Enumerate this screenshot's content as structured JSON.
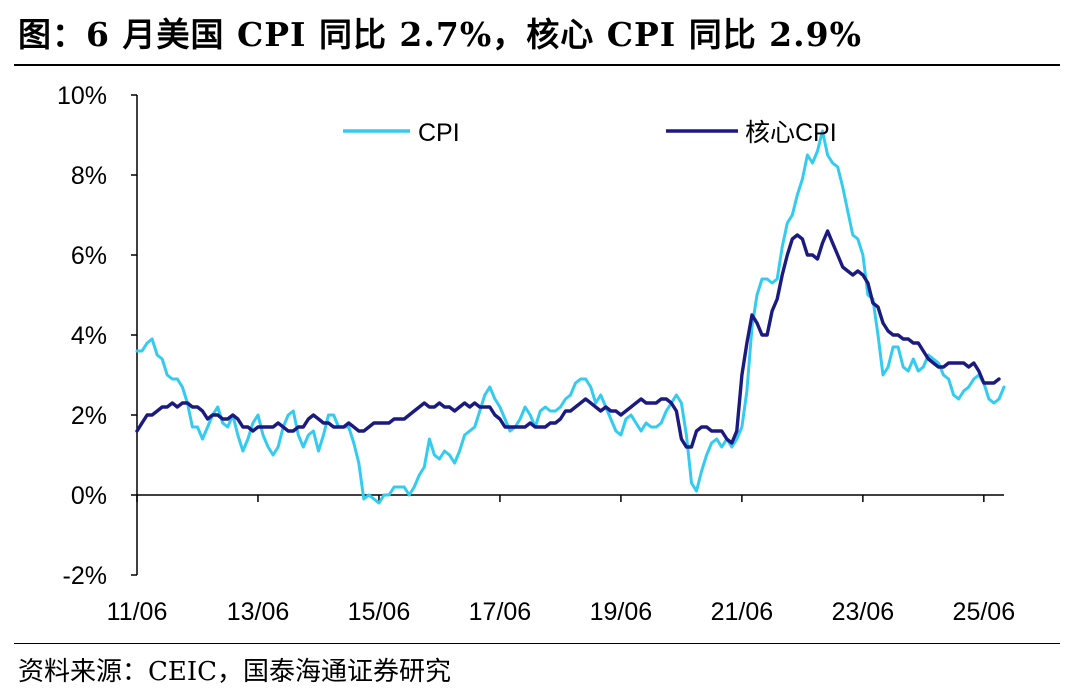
{
  "header": {
    "title": "图：6 月美国 CPI 同比 2.7%，核心 CPI 同比 2.9%"
  },
  "footer": {
    "source": "资料来源：CEIC，国泰海通证券研究"
  },
  "chart_data": {
    "type": "line",
    "title": "图：6 月美国 CPI 同比 2.7%，核心 CPI 同比 2.9%",
    "xlabel": "",
    "ylabel": "",
    "ylim": [
      -2,
      10
    ],
    "y_ticks": [
      -2,
      0,
      2,
      4,
      6,
      8,
      10
    ],
    "y_tick_labels": [
      "-2%",
      "0%",
      "2%",
      "4%",
      "6%",
      "8%",
      "10%"
    ],
    "x_start": "2011-06",
    "x_end": "2025-06",
    "x_tick_labels": [
      "11/06",
      "13/06",
      "15/06",
      "17/06",
      "19/06",
      "21/06",
      "23/06",
      "25/06"
    ],
    "grid": false,
    "legend_position": "top",
    "colors": {
      "cpi": "#33ccf0",
      "core": "#1a1a80"
    },
    "series": [
      {
        "name": "CPI",
        "color": "#33ccf0",
        "values": [
          3.6,
          3.6,
          3.8,
          3.9,
          3.5,
          3.4,
          3.0,
          2.9,
          2.9,
          2.7,
          2.3,
          1.7,
          1.7,
          1.4,
          1.7,
          2.0,
          2.2,
          1.8,
          1.7,
          2.0,
          1.5,
          1.1,
          1.4,
          1.8,
          2.0,
          1.5,
          1.2,
          1.0,
          1.2,
          1.7,
          2.0,
          2.1,
          1.5,
          1.2,
          1.5,
          1.6,
          1.1,
          1.5,
          2.0,
          2.0,
          1.7,
          1.7,
          1.7,
          1.3,
          0.8,
          -0.1,
          0.0,
          -0.1,
          -0.2,
          0.0,
          0.0,
          0.2,
          0.2,
          0.2,
          0.0,
          0.2,
          0.5,
          0.7,
          1.4,
          1.0,
          0.9,
          1.1,
          1.0,
          0.8,
          1.1,
          1.5,
          1.6,
          1.7,
          2.1,
          2.5,
          2.7,
          2.4,
          2.2,
          1.9,
          1.6,
          1.7,
          1.9,
          2.2,
          2.0,
          1.7,
          2.1,
          2.2,
          2.1,
          2.1,
          2.2,
          2.4,
          2.5,
          2.8,
          2.9,
          2.9,
          2.7,
          2.3,
          2.5,
          2.2,
          1.9,
          1.6,
          1.5,
          1.9,
          2.0,
          1.8,
          1.6,
          1.8,
          1.7,
          1.7,
          1.8,
          2.1,
          2.3,
          2.5,
          2.3,
          1.5,
          0.3,
          0.1,
          0.6,
          1.0,
          1.3,
          1.4,
          1.2,
          1.4,
          1.2,
          1.4,
          1.7,
          2.6,
          4.2,
          5.0,
          5.4,
          5.4,
          5.3,
          5.4,
          6.2,
          6.8,
          7.0,
          7.5,
          7.9,
          8.5,
          8.3,
          8.6,
          9.1,
          8.5,
          8.3,
          8.2,
          7.7,
          7.1,
          6.5,
          6.4,
          6.0,
          5.0,
          4.9,
          4.0,
          3.0,
          3.2,
          3.7,
          3.7,
          3.2,
          3.1,
          3.4,
          3.1,
          3.2,
          3.5,
          3.4,
          3.3,
          3.0,
          2.9,
          2.5,
          2.4,
          2.6,
          2.7,
          2.9,
          3.0,
          2.8,
          2.4,
          2.3,
          2.4,
          2.7
        ]
      },
      {
        "name": "核心CPI",
        "color": "#1a1a80",
        "values": [
          1.6,
          1.8,
          2.0,
          2.0,
          2.1,
          2.2,
          2.2,
          2.3,
          2.2,
          2.3,
          2.3,
          2.2,
          2.2,
          2.1,
          1.9,
          2.0,
          2.0,
          1.9,
          1.9,
          2.0,
          1.9,
          1.7,
          1.7,
          1.6,
          1.7,
          1.7,
          1.7,
          1.7,
          1.8,
          1.7,
          1.6,
          1.6,
          1.7,
          1.7,
          1.9,
          2.0,
          1.9,
          1.8,
          1.8,
          1.7,
          1.7,
          1.7,
          1.8,
          1.7,
          1.6,
          1.6,
          1.7,
          1.8,
          1.8,
          1.8,
          1.8,
          1.9,
          1.9,
          1.9,
          2.0,
          2.1,
          2.2,
          2.3,
          2.2,
          2.2,
          2.3,
          2.2,
          2.2,
          2.1,
          2.2,
          2.3,
          2.2,
          2.3,
          2.2,
          2.2,
          2.2,
          2.0,
          1.9,
          1.7,
          1.7,
          1.7,
          1.7,
          1.7,
          1.8,
          1.7,
          1.7,
          1.7,
          1.8,
          1.8,
          1.9,
          2.1,
          2.1,
          2.2,
          2.3,
          2.4,
          2.3,
          2.2,
          2.1,
          2.2,
          2.1,
          2.1,
          2.0,
          2.1,
          2.2,
          2.3,
          2.4,
          2.3,
          2.3,
          2.3,
          2.4,
          2.4,
          2.3,
          2.1,
          1.4,
          1.2,
          1.2,
          1.6,
          1.7,
          1.7,
          1.6,
          1.6,
          1.6,
          1.4,
          1.3,
          1.6,
          3.0,
          3.8,
          4.5,
          4.3,
          4.0,
          4.0,
          4.6,
          4.9,
          5.5,
          6.0,
          6.4,
          6.5,
          6.4,
          6.0,
          6.0,
          5.9,
          6.3,
          6.6,
          6.3,
          6.0,
          5.7,
          5.6,
          5.5,
          5.6,
          5.5,
          5.3,
          4.8,
          4.7,
          4.3,
          4.1,
          4.0,
          4.0,
          3.9,
          3.9,
          3.8,
          3.8,
          3.6,
          3.4,
          3.3,
          3.2,
          3.2,
          3.3,
          3.3,
          3.3,
          3.3,
          3.2,
          3.3,
          3.1,
          2.8,
          2.8,
          2.8,
          2.9
        ]
      }
    ]
  }
}
